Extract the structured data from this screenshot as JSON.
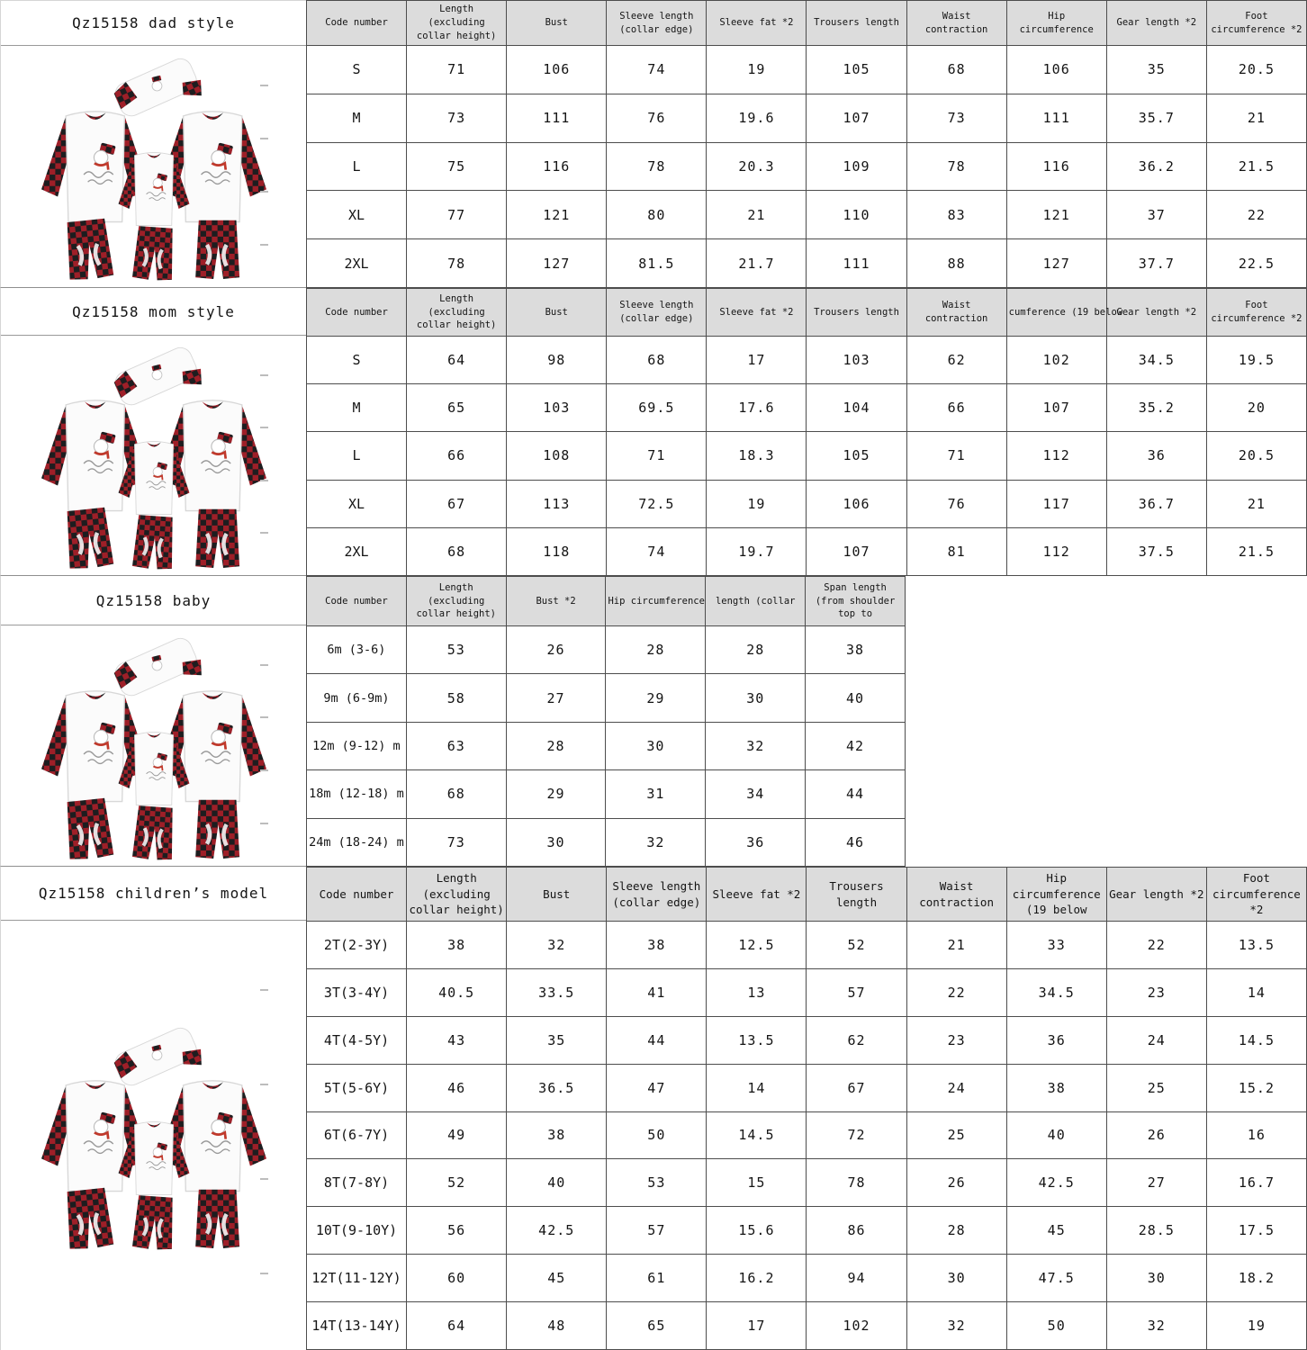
{
  "colors": {
    "header_bg": "#dcdcdc",
    "border": "#4d4d4d",
    "plaid_red": "#c62f35",
    "plaid_black": "#1d1d1f",
    "scarf_red": "#c0392b"
  },
  "illustration": {
    "name": "family-plaid-snowman-pajama-set",
    "description": "red-black buffalo plaid pajama tops and pants with snowman print"
  },
  "sections": [
    {
      "title": "Qz15158 dad style",
      "columns": [
        "Code number",
        "Length (excluding collar height)",
        "Bust",
        "Sleeve length (collar edge)",
        "Sleeve fat *2",
        "Trousers length",
        "Waist contraction",
        "Hip circumference",
        "Gear length *2",
        "Foot circumference *2"
      ],
      "rows": [
        [
          "S",
          "71",
          "106",
          "74",
          "19",
          "105",
          "68",
          "106",
          "35",
          "20.5"
        ],
        [
          "M",
          "73",
          "111",
          "76",
          "19.6",
          "107",
          "73",
          "111",
          "35.7",
          "21"
        ],
        [
          "L",
          "75",
          "116",
          "78",
          "20.3",
          "109",
          "78",
          "116",
          "36.2",
          "21.5"
        ],
        [
          "XL",
          "77",
          "121",
          "80",
          "21",
          "110",
          "83",
          "121",
          "37",
          "22"
        ],
        [
          "2XL",
          "78",
          "127",
          "81.5",
          "21.7",
          "111",
          "88",
          "127",
          "37.7",
          "22.5"
        ]
      ]
    },
    {
      "title": "Qz15158 mom style",
      "columns": [
        "Code number",
        "Length (excluding collar height)",
        "Bust",
        "Sleeve length (collar edge)",
        "Sleeve fat *2",
        "Trousers length",
        "Waist contraction",
        "cumference (19 below",
        "Gear length *2",
        "Foot circumference *2"
      ],
      "rows": [
        [
          "S",
          "64",
          "98",
          "68",
          "17",
          "103",
          "62",
          "102",
          "34.5",
          "19.5"
        ],
        [
          "M",
          "65",
          "103",
          "69.5",
          "17.6",
          "104",
          "66",
          "107",
          "35.2",
          "20"
        ],
        [
          "L",
          "66",
          "108",
          "71",
          "18.3",
          "105",
          "71",
          "112",
          "36",
          "20.5"
        ],
        [
          "XL",
          "67",
          "113",
          "72.5",
          "19",
          "106",
          "76",
          "117",
          "36.7",
          "21"
        ],
        [
          "2XL",
          "68",
          "118",
          "74",
          "19.7",
          "107",
          "81",
          "112",
          "37.5",
          "21.5"
        ]
      ]
    },
    {
      "title": "Qz15158 baby",
      "columns": [
        "Code number",
        "Length (excluding collar height)",
        "Bust *2",
        "Hip circumference",
        "length (collar",
        "Span length (from shoulder top to"
      ],
      "rows": [
        [
          "6m (3-6)",
          "53",
          "26",
          "28",
          "28",
          "38"
        ],
        [
          "9m (6-9m)",
          "58",
          "27",
          "29",
          "30",
          "40"
        ],
        [
          "12m (9-12) m",
          "63",
          "28",
          "30",
          "32",
          "42"
        ],
        [
          "18m (12-18) m",
          "68",
          "29",
          "31",
          "34",
          "44"
        ],
        [
          "24m (18-24) m",
          "73",
          "30",
          "32",
          "36",
          "46"
        ]
      ]
    },
    {
      "title": "Qz15158 children’s model",
      "columns": [
        "Code number",
        "Length (excluding collar height)",
        "Bust",
        "Sleeve length (collar edge)",
        "Sleeve fat *2",
        "Trousers length",
        "Waist contraction",
        "Hip circumference (19 below",
        "Gear length *2",
        "Foot circumference *2"
      ],
      "rows": [
        [
          "2T(2-3Y)",
          "38",
          "32",
          "38",
          "12.5",
          "52",
          "21",
          "33",
          "22",
          "13.5"
        ],
        [
          "3T(3-4Y)",
          "40.5",
          "33.5",
          "41",
          "13",
          "57",
          "22",
          "34.5",
          "23",
          "14"
        ],
        [
          "4T(4-5Y)",
          "43",
          "35",
          "44",
          "13.5",
          "62",
          "23",
          "36",
          "24",
          "14.5"
        ],
        [
          "5T(5-6Y)",
          "46",
          "36.5",
          "47",
          "14",
          "67",
          "24",
          "38",
          "25",
          "15.2"
        ],
        [
          "6T(6-7Y)",
          "49",
          "38",
          "50",
          "14.5",
          "72",
          "25",
          "40",
          "26",
          "16"
        ],
        [
          "8T(7-8Y)",
          "52",
          "40",
          "53",
          "15",
          "78",
          "26",
          "42.5",
          "27",
          "16.7"
        ],
        [
          "10T(9-10Y)",
          "56",
          "42.5",
          "57",
          "15.6",
          "86",
          "28",
          "45",
          "28.5",
          "17.5"
        ],
        [
          "12T(11-12Y)",
          "60",
          "45",
          "61",
          "16.2",
          "94",
          "30",
          "47.5",
          "30",
          "18.2"
        ],
        [
          "14T(13-14Y)",
          "64",
          "48",
          "65",
          "17",
          "102",
          "32",
          "50",
          "32",
          "19"
        ]
      ]
    }
  ]
}
